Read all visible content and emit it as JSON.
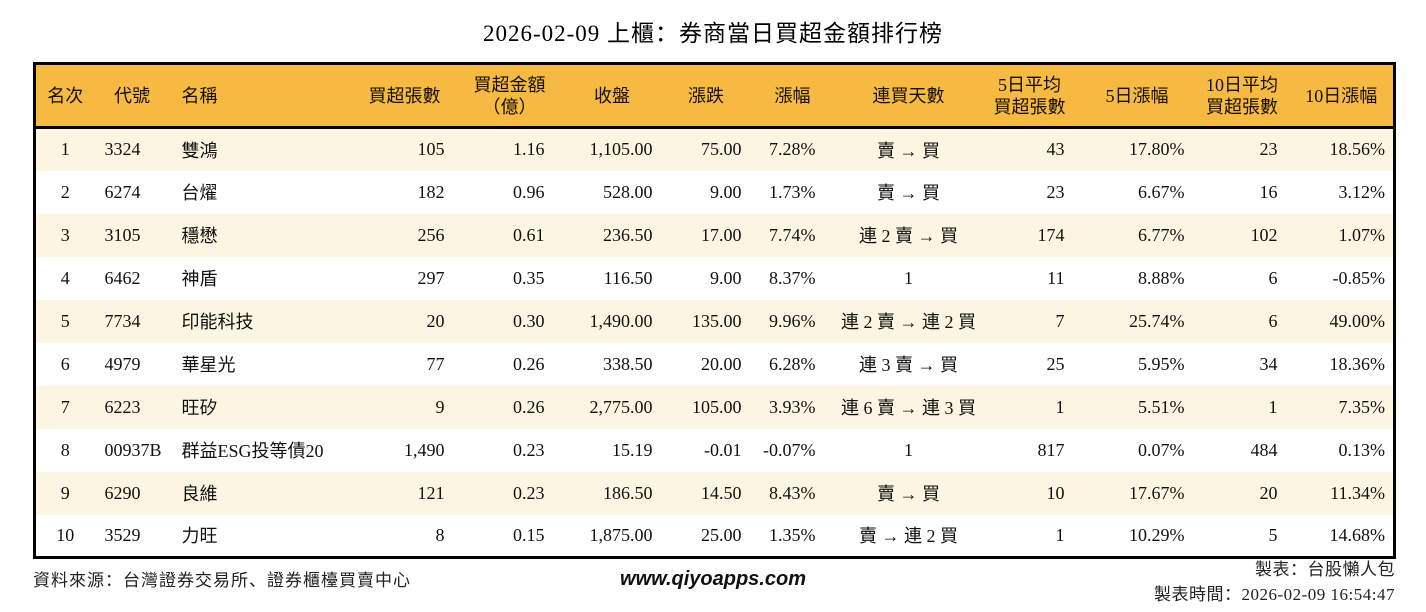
{
  "title": "2026-02-09 上櫃：券商當日買超金額排行榜",
  "colors": {
    "header_bg": "#F6B941",
    "row_alt_bg": "#FCF5E1",
    "row_bg": "#FFFFFF",
    "positive_red": "#DD1111",
    "negative_green": "#1F8A1F",
    "border_black": "#000000"
  },
  "table": {
    "headers": [
      "名次",
      "代號",
      "名稱",
      "買超張數",
      "買超金額\n（億）",
      "收盤",
      "漲跌",
      "漲幅",
      "連買天數",
      "5日平均\n買超張數",
      "5日漲幅",
      "10日平均\n買超張數",
      "10日漲幅"
    ],
    "rows": [
      [
        "1",
        "3324",
        "雙鴻",
        "105",
        "1.16",
        "1,105.00",
        "75.00",
        "7.28%",
        "賣 → 買",
        "43",
        "17.80%",
        "23",
        "18.56%"
      ],
      [
        "2",
        "6274",
        "台燿",
        "182",
        "0.96",
        "528.00",
        "9.00",
        "1.73%",
        "賣 → 買",
        "23",
        "6.67%",
        "16",
        "3.12%"
      ],
      [
        "3",
        "3105",
        "穩懋",
        "256",
        "0.61",
        "236.50",
        "17.00",
        "7.74%",
        "連 2 賣 → 買",
        "174",
        "6.77%",
        "102",
        "1.07%"
      ],
      [
        "4",
        "6462",
        "神盾",
        "297",
        "0.35",
        "116.50",
        "9.00",
        "8.37%",
        "1",
        "11",
        "8.88%",
        "6",
        "-0.85%"
      ],
      [
        "5",
        "7734",
        "印能科技",
        "20",
        "0.30",
        "1,490.00",
        "135.00",
        "9.96%",
        "連 2 賣 → 連 2 買",
        "7",
        "25.74%",
        "6",
        "49.00%"
      ],
      [
        "6",
        "4979",
        "華星光",
        "77",
        "0.26",
        "338.50",
        "20.00",
        "6.28%",
        "連 3 賣 → 買",
        "25",
        "5.95%",
        "34",
        "18.36%"
      ],
      [
        "7",
        "6223",
        "旺矽",
        "9",
        "0.26",
        "2,775.00",
        "105.00",
        "3.93%",
        "連 6 賣 → 連 3 買",
        "1",
        "5.51%",
        "1",
        "7.35%"
      ],
      [
        "8",
        "00937B",
        "群益ESG投等債20",
        "1,490",
        "0.23",
        "15.19",
        "-0.01",
        "-0.07%",
        "1",
        "817",
        "0.07%",
        "484",
        "0.13%"
      ],
      [
        "9",
        "6290",
        "良維",
        "121",
        "0.23",
        "186.50",
        "14.50",
        "8.43%",
        "賣 → 買",
        "10",
        "17.67%",
        "20",
        "11.34%"
      ],
      [
        "10",
        "3529",
        "力旺",
        "8",
        "0.15",
        "1,875.00",
        "25.00",
        "1.35%",
        "賣 → 連 2 買",
        "1",
        "10.29%",
        "5",
        "14.68%"
      ]
    ]
  },
  "footer": {
    "source": "資料來源：台灣證券交易所、證券櫃檯買賣中心",
    "website": "www.qiyoapps.com",
    "maker": "製表：台股懶人包",
    "made_time": "製表時間：2026-02-09 16:54:47"
  },
  "chart_data": {
    "type": "table",
    "title": "2026-02-09 上櫃：券商當日買超金額排行榜",
    "columns": [
      "名次",
      "代號",
      "名稱",
      "買超張數",
      "買超金額（億）",
      "收盤",
      "漲跌",
      "漲幅",
      "連買天數",
      "5日平均買超張數",
      "5日漲幅",
      "10日平均買超張數",
      "10日漲幅"
    ],
    "rows": [
      [
        1,
        "3324",
        "雙鴻",
        105,
        1.16,
        1105.0,
        75.0,
        "7.28%",
        "賣 → 買",
        43,
        "17.80%",
        23,
        "18.56%"
      ],
      [
        2,
        "6274",
        "台燿",
        182,
        0.96,
        528.0,
        9.0,
        "1.73%",
        "賣 → 買",
        23,
        "6.67%",
        16,
        "3.12%"
      ],
      [
        3,
        "3105",
        "穩懋",
        256,
        0.61,
        236.5,
        17.0,
        "7.74%",
        "連 2 賣 → 買",
        174,
        "6.77%",
        102,
        "1.07%"
      ],
      [
        4,
        "6462",
        "神盾",
        297,
        0.35,
        116.5,
        9.0,
        "8.37%",
        "1",
        11,
        "8.88%",
        6,
        "-0.85%"
      ],
      [
        5,
        "7734",
        "印能科技",
        20,
        0.3,
        1490.0,
        135.0,
        "9.96%",
        "連 2 賣 → 連 2 買",
        7,
        "25.74%",
        6,
        "49.00%"
      ],
      [
        6,
        "4979",
        "華星光",
        77,
        0.26,
        338.5,
        20.0,
        "6.28%",
        "連 3 賣 → 買",
        25,
        "5.95%",
        34,
        "18.36%"
      ],
      [
        7,
        "6223",
        "旺矽",
        9,
        0.26,
        2775.0,
        105.0,
        "3.93%",
        "連 6 賣 → 連 3 買",
        1,
        "5.51%",
        1,
        "7.35%"
      ],
      [
        8,
        "00937B",
        "群益ESG投等債20",
        1490,
        0.23,
        15.19,
        -0.01,
        "-0.07%",
        "1",
        817,
        "0.07%",
        484,
        "0.13%"
      ],
      [
        9,
        "6290",
        "良維",
        121,
        0.23,
        186.5,
        14.5,
        "8.43%",
        "賣 → 買",
        10,
        "17.67%",
        20,
        "11.34%"
      ],
      [
        10,
        "3529",
        "力旺",
        8,
        0.15,
        1875.0,
        25.0,
        "1.35%",
        "賣 → 連 2 買",
        1,
        "10.29%",
        5,
        "14.68%"
      ]
    ],
    "notes": "漲跌/漲幅/5日漲幅/10日漲幅欄位：正值紅色、負值綠色"
  }
}
